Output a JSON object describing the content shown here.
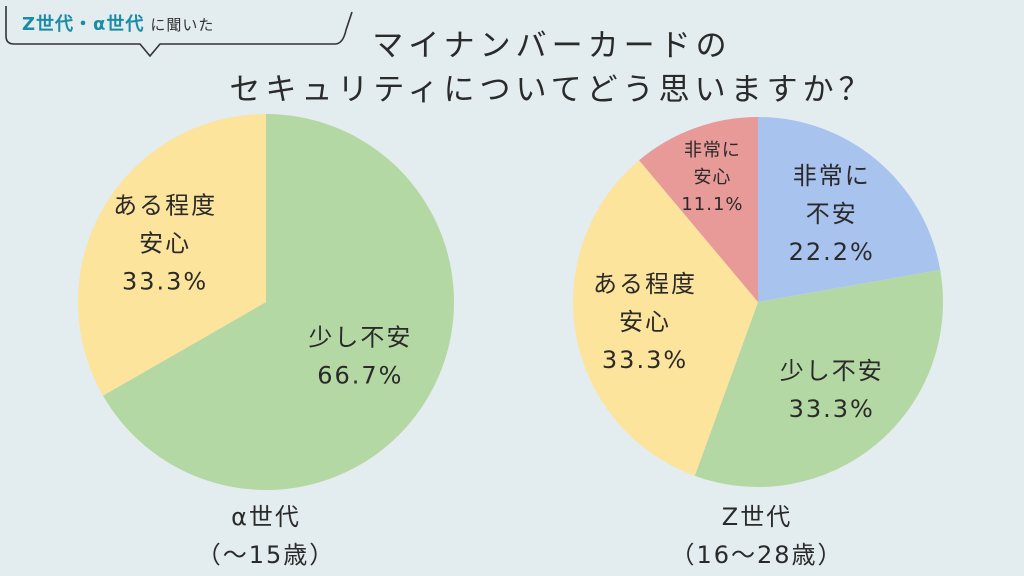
{
  "tag": {
    "part1": "Z世代・α世代",
    "part2": "に聞いた"
  },
  "title": {
    "line1": "マイナンバーカードの",
    "line2": "セキュリティについてどう思いますか？"
  },
  "chart_data": [
    {
      "type": "pie",
      "caption_line1": "α世代",
      "caption_line2": "（〜15歳）",
      "slices": [
        {
          "label_lines": [
            "少し不安",
            "66.7%"
          ],
          "value": 66.7,
          "color": "#b4d8a3"
        },
        {
          "label_lines": [
            "ある程度",
            "安心",
            "33.3%"
          ],
          "value": 33.3,
          "color": "#fde49c"
        }
      ]
    },
    {
      "type": "pie",
      "caption_line1": "Z世代",
      "caption_line2": "（16〜28歳）",
      "slices": [
        {
          "label_lines": [
            "非常に",
            "不安",
            "22.2%"
          ],
          "value": 22.2,
          "color": "#a9c3ef"
        },
        {
          "label_lines": [
            "少し不安",
            "33.3%"
          ],
          "value": 33.3,
          "color": "#b4d8a3"
        },
        {
          "label_lines": [
            "ある程度",
            "安心",
            "33.3%"
          ],
          "value": 33.3,
          "color": "#fde49c"
        },
        {
          "label_lines": [
            "非常に",
            "安心",
            "11.1%"
          ],
          "value": 11.1,
          "color": "#e89a98"
        }
      ]
    }
  ]
}
